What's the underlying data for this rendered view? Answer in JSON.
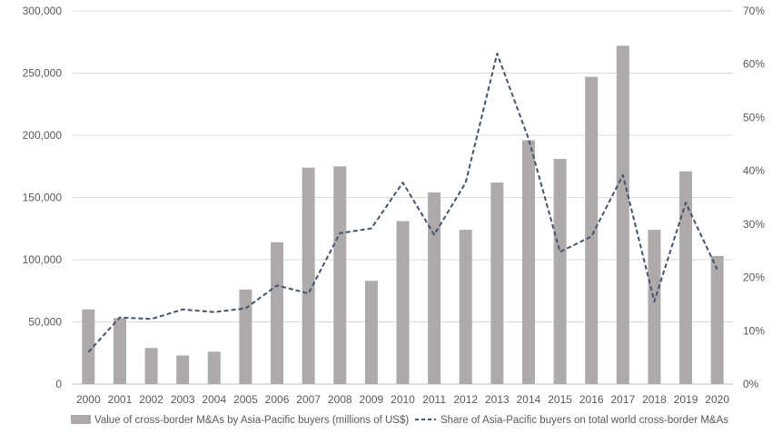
{
  "chart_data": {
    "type": "bar",
    "categories": [
      "2000",
      "2001",
      "2002",
      "2003",
      "2004",
      "2005",
      "2006",
      "2007",
      "2008",
      "2009",
      "2010",
      "2011",
      "2012",
      "2013",
      "2014",
      "2015",
      "2016",
      "2017",
      "2018",
      "2019",
      "2020"
    ],
    "series": [
      {
        "name": "Value of cross-border M&As by Asia-Pacific buyers (millions of US$)",
        "type": "bar",
        "axis": "left",
        "color": "#aeaaaa",
        "values": [
          60000,
          53000,
          29000,
          23000,
          26000,
          76000,
          114000,
          174000,
          175000,
          83000,
          131000,
          154000,
          124000,
          162000,
          196000,
          181000,
          247000,
          272000,
          124000,
          171000,
          103000
        ]
      },
      {
        "name": "Share of Asia-Pacific buyers on total world cross-border M&As",
        "type": "line",
        "style": "dashed",
        "axis": "right",
        "color": "#44546a",
        "values": [
          6,
          12.5,
          12.2,
          14,
          13.5,
          14.2,
          18.5,
          17,
          28.3,
          29.2,
          37.8,
          28,
          37.8,
          62,
          46,
          24.8,
          27.7,
          39.2,
          15.5,
          34,
          21.5
        ]
      }
    ],
    "y_left": {
      "min": 0,
      "max": 300000,
      "ticks": [
        0,
        50000,
        100000,
        150000,
        200000,
        250000,
        300000
      ],
      "tick_labels": [
        "0",
        "50,000",
        "100,000",
        "150,000",
        "200,000",
        "250,000",
        "300,000"
      ]
    },
    "y_right": {
      "min": 0,
      "max": 70,
      "ticks": [
        0,
        10,
        20,
        30,
        40,
        50,
        60,
        70
      ],
      "tick_labels": [
        "0%",
        "10%",
        "20%",
        "30%",
        "40%",
        "50%",
        "60%",
        "70%"
      ]
    },
    "grid": true,
    "gridline_color": "#d9d9d9",
    "legend_position": "bottom"
  }
}
